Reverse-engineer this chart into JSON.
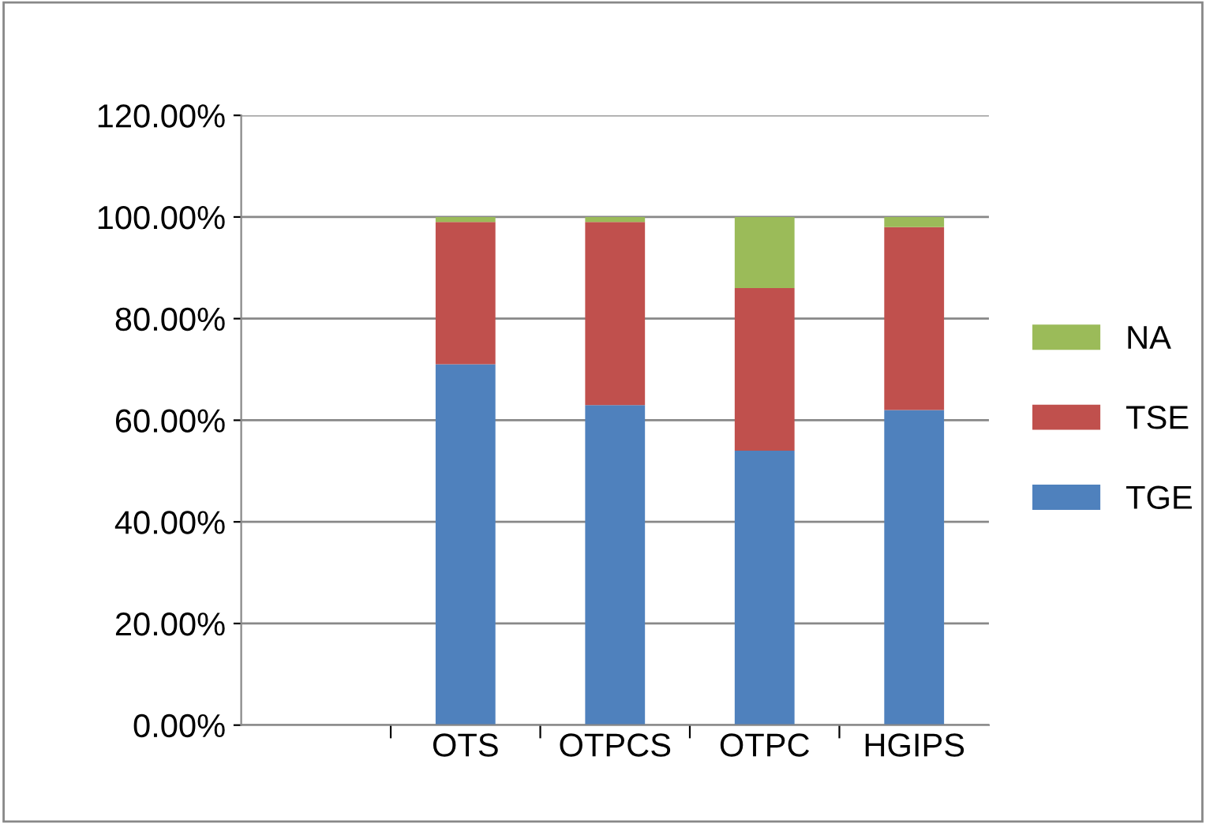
{
  "chart_data": {
    "type": "bar",
    "stacked": true,
    "categories": [
      null,
      "OTS",
      "OTPCS",
      "OTPC",
      "HGIPS"
    ],
    "series": [
      {
        "name": "TGE",
        "color": "#4f81bd",
        "values": [
          null,
          71,
          63,
          54,
          62
        ]
      },
      {
        "name": "TSE",
        "color": "#c0504d",
        "values": [
          null,
          28,
          36,
          32,
          36
        ]
      },
      {
        "name": "NA",
        "color": "#9bbb59",
        "values": [
          null,
          1,
          1,
          14,
          2
        ]
      }
    ],
    "ylim": [
      0,
      120
    ],
    "yticks": [
      {
        "value": 0,
        "label": "0.00%"
      },
      {
        "value": 20,
        "label": "20.00%"
      },
      {
        "value": 40,
        "label": "40.00%"
      },
      {
        "value": 60,
        "label": "60.00%"
      },
      {
        "value": 80,
        "label": "80.00%"
      },
      {
        "value": 100,
        "label": "100.00%"
      },
      {
        "value": 120,
        "label": "120.00%"
      }
    ],
    "grid": "y",
    "legend": "right"
  }
}
